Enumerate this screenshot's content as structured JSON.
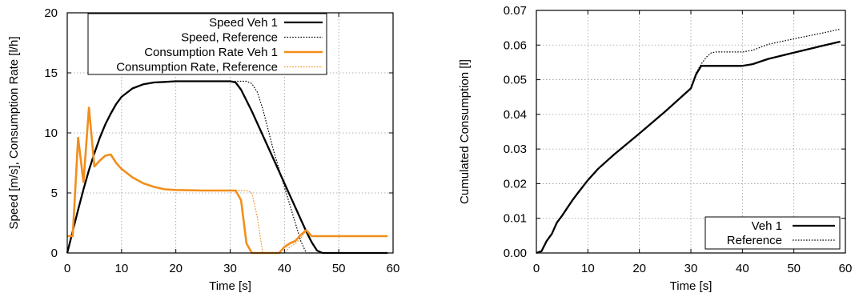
{
  "chart_data": [
    {
      "type": "line",
      "title": "",
      "xlabel": "Time [s]",
      "ylabel": "Speed [m/s], Consumption Rate [l/h]",
      "xlim": [
        0,
        60
      ],
      "ylim": [
        0,
        20
      ],
      "xticks": [
        0,
        10,
        20,
        30,
        40,
        50,
        60
      ],
      "yticks": [
        0,
        5,
        10,
        15,
        20
      ],
      "grid": true,
      "legend": "top-right",
      "series": [
        {
          "name": "Speed Veh 1",
          "color": "#000000",
          "style": "solid",
          "x": [
            0,
            1,
            2,
            3,
            4,
            5,
            6,
            7,
            8,
            9,
            10,
            12,
            14,
            16,
            18,
            20,
            22,
            25,
            28,
            30,
            31,
            32,
            34,
            36,
            38,
            40,
            42,
            44,
            45,
            46,
            47,
            59
          ],
          "y": [
            0,
            1.8,
            3.6,
            5.3,
            6.9,
            8.3,
            9.6,
            10.7,
            11.6,
            12.4,
            13.0,
            13.7,
            14.05,
            14.2,
            14.25,
            14.3,
            14.3,
            14.3,
            14.3,
            14.3,
            14.2,
            13.6,
            11.8,
            9.8,
            7.8,
            5.8,
            3.8,
            1.8,
            0.9,
            0.2,
            0,
            0
          ]
        },
        {
          "name": "Speed, Reference",
          "color": "#000000",
          "style": "dotted",
          "x": [
            0,
            1,
            2,
            3,
            4,
            5,
            6,
            7,
            8,
            9,
            10,
            12,
            14,
            16,
            18,
            20,
            22,
            25,
            28,
            30,
            31,
            32,
            33,
            34,
            35,
            36,
            38,
            40,
            42,
            43,
            44,
            59
          ],
          "y": [
            0,
            1.8,
            3.6,
            5.3,
            6.9,
            8.3,
            9.6,
            10.7,
            11.6,
            12.4,
            13.0,
            13.7,
            14.05,
            14.2,
            14.25,
            14.3,
            14.3,
            14.3,
            14.3,
            14.3,
            14.3,
            14.3,
            14.3,
            14.1,
            13.4,
            12.0,
            8.5,
            5.5,
            2.5,
            1.0,
            0,
            0
          ]
        },
        {
          "name": "Consumption Rate Veh 1",
          "color": "#f28e1c",
          "style": "solid",
          "x": [
            0,
            1,
            2,
            3,
            4,
            5,
            6,
            7,
            8,
            9,
            10,
            12,
            14,
            16,
            18,
            20,
            25,
            30,
            31,
            32,
            33,
            34,
            35,
            36,
            39,
            40,
            41,
            42,
            43,
            44,
            45,
            59
          ],
          "y": [
            1.4,
            1.4,
            9.6,
            5.9,
            12.1,
            7.2,
            7.7,
            8.1,
            8.2,
            7.5,
            7.0,
            6.3,
            5.8,
            5.5,
            5.3,
            5.25,
            5.2,
            5.2,
            5.2,
            4.4,
            0.8,
            0,
            0,
            0,
            0,
            0.5,
            0.8,
            1.0,
            1.5,
            1.9,
            1.4,
            1.4
          ]
        },
        {
          "name": "Consumption Rate, Reference",
          "color": "#f28e1c",
          "style": "dotted",
          "x": [
            0,
            1,
            2,
            3,
            4,
            5,
            6,
            7,
            8,
            9,
            10,
            12,
            14,
            16,
            18,
            20,
            25,
            30,
            32,
            33,
            34,
            35,
            36,
            40,
            41,
            42,
            43,
            44,
            45,
            59
          ],
          "y": [
            1.4,
            1.4,
            9.6,
            5.9,
            12.1,
            7.2,
            7.7,
            8.1,
            8.2,
            7.5,
            7.0,
            6.3,
            5.8,
            5.5,
            5.3,
            5.25,
            5.2,
            5.2,
            5.2,
            5.2,
            5.0,
            3.0,
            0,
            0,
            0.5,
            0.8,
            1.2,
            1.9,
            1.4,
            1.4
          ]
        }
      ]
    },
    {
      "type": "line",
      "title": "",
      "xlabel": "Time [s]",
      "ylabel": "Cumulated Consumption [l]",
      "xlim": [
        0,
        60
      ],
      "ylim": [
        0,
        0.07
      ],
      "xticks": [
        0,
        10,
        20,
        30,
        40,
        50,
        60
      ],
      "yticks": [
        0,
        0.01,
        0.02,
        0.03,
        0.04,
        0.05,
        0.06,
        0.07
      ],
      "grid": true,
      "legend": "bottom-right",
      "series": [
        {
          "name": "Veh 1",
          "color": "#000000",
          "style": "solid",
          "x": [
            0,
            1,
            2,
            3,
            4,
            5,
            6,
            7,
            8,
            10,
            12,
            15,
            20,
            25,
            30,
            31,
            32,
            35,
            40,
            42,
            45,
            50,
            55,
            59
          ],
          "y": [
            0,
            0.0005,
            0.0035,
            0.0055,
            0.0088,
            0.0108,
            0.013,
            0.0152,
            0.0172,
            0.021,
            0.0243,
            0.0283,
            0.0345,
            0.0408,
            0.0475,
            0.0515,
            0.054,
            0.054,
            0.054,
            0.0545,
            0.056,
            0.0578,
            0.0596,
            0.061
          ]
        },
        {
          "name": "Reference",
          "color": "#000000",
          "style": "dotted",
          "x": [
            0,
            1,
            2,
            3,
            4,
            5,
            6,
            7,
            8,
            10,
            12,
            15,
            20,
            25,
            30,
            31,
            32,
            33,
            34,
            35,
            40,
            42,
            45,
            50,
            55,
            59
          ],
          "y": [
            0,
            0.0005,
            0.0035,
            0.0055,
            0.0088,
            0.0108,
            0.013,
            0.0152,
            0.0172,
            0.021,
            0.0243,
            0.0283,
            0.0345,
            0.0408,
            0.0475,
            0.052,
            0.0545,
            0.0565,
            0.0578,
            0.058,
            0.058,
            0.0585,
            0.0602,
            0.0618,
            0.0633,
            0.0646
          ]
        }
      ]
    }
  ]
}
